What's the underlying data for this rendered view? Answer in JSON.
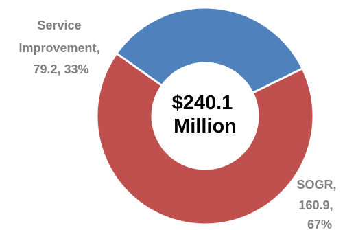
{
  "chart_data": {
    "type": "pie",
    "style": "donut",
    "center_label": {
      "line1": "$240.1",
      "line2": "Million"
    },
    "slices": [
      {
        "name": "SOGR",
        "value": 160.9,
        "percent": "67%",
        "color": "#c0504d",
        "label_lines": [
          "SOGR,",
          "160.9,",
          "67%"
        ]
      },
      {
        "name": "Service Improvement",
        "value": 79.2,
        "percent": "33%",
        "color": "#4f81bd",
        "label_lines": [
          "Service",
          "Improvement,",
          "79.2, 33%"
        ]
      }
    ],
    "total": 240.1
  }
}
